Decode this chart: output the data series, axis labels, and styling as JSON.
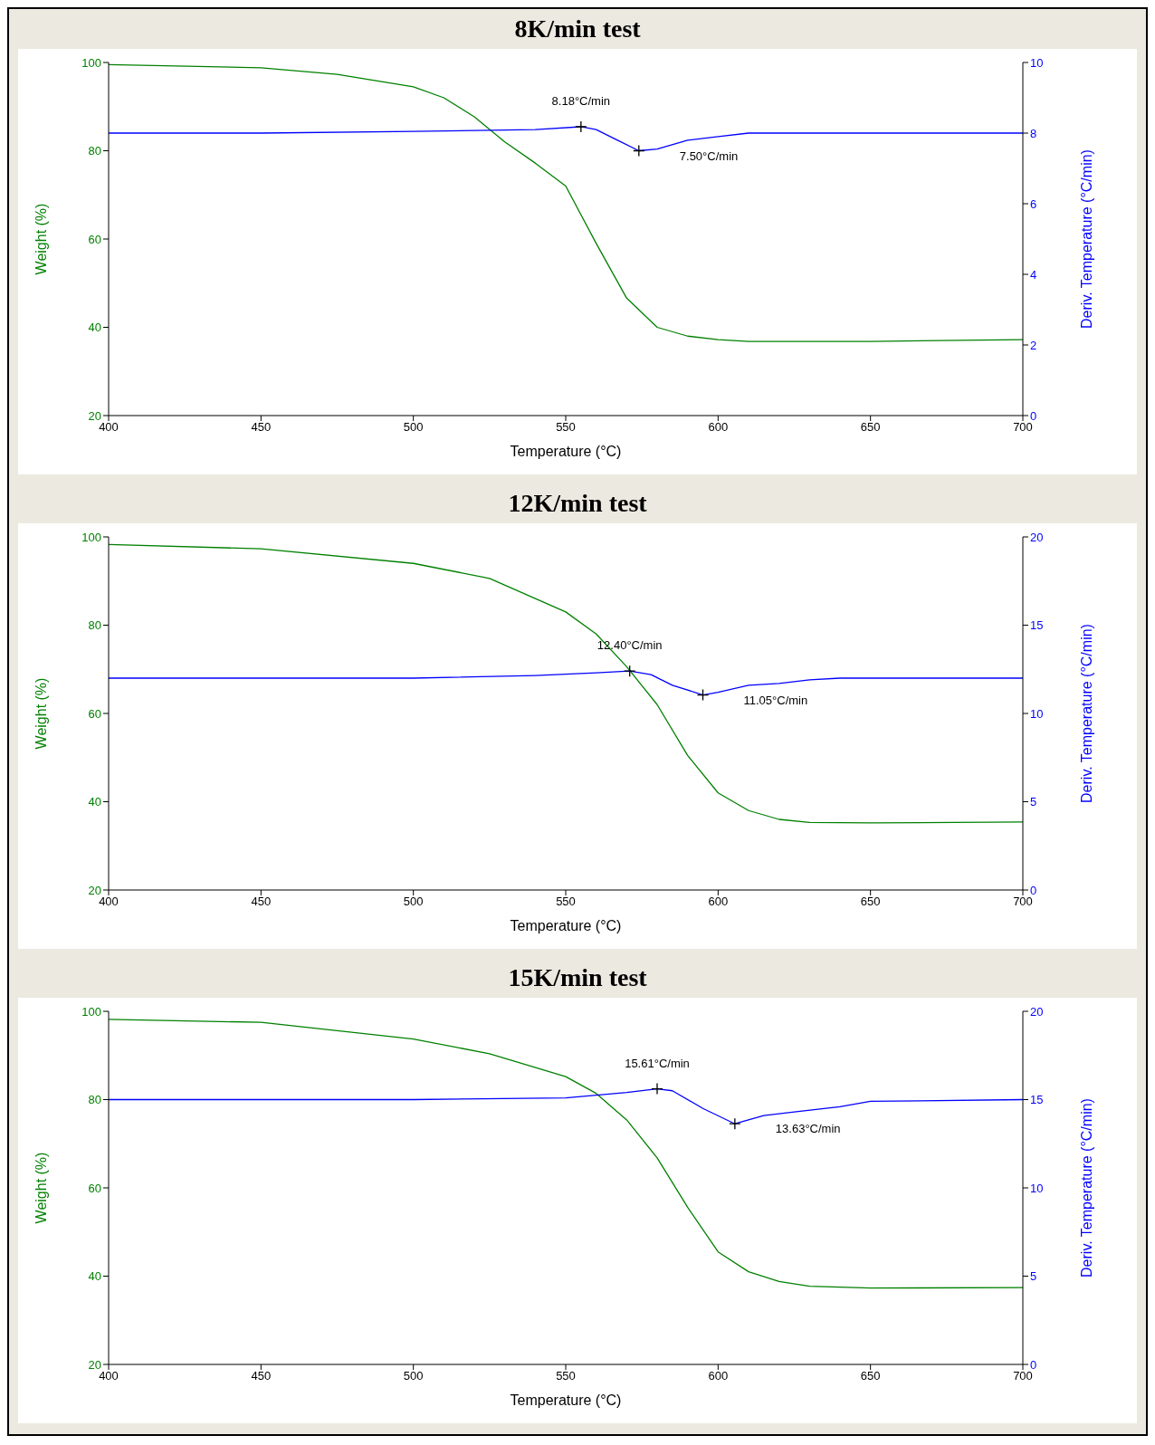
{
  "chart_data": [
    {
      "type": "line",
      "title": "8K/min test",
      "xlabel": "Temperature (°C)",
      "ylabel": "Weight (%)",
      "y2label": "Deriv. Temperature (°C/min)",
      "xlim": [
        400,
        700
      ],
      "xticks": [
        400,
        450,
        500,
        550,
        600,
        650,
        700
      ],
      "ylim": [
        20,
        100
      ],
      "yticks": [
        20,
        40,
        60,
        80,
        100
      ],
      "y2lim": [
        0,
        10
      ],
      "y2ticks": [
        0,
        2,
        4,
        6,
        8,
        10
      ],
      "series": [
        {
          "color": "#008000",
          "axis": "y",
          "x": [
            400,
            450,
            475,
            500,
            510,
            520,
            530,
            540,
            550,
            560,
            570,
            580,
            590,
            600,
            610,
            650,
            700
          ],
          "values": [
            99.5,
            98.8,
            97.3,
            94.5,
            92,
            87.7,
            82,
            77.2,
            72,
            59,
            46.6,
            40,
            38,
            37.2,
            36.8,
            36.8,
            37.2
          ]
        },
        {
          "color": "#0000ff",
          "axis": "y2",
          "x": [
            400,
            450,
            500,
            540,
            555,
            560,
            567,
            574,
            580,
            590,
            600,
            610,
            650,
            700
          ],
          "values": [
            8.0,
            8.0,
            8.05,
            8.1,
            8.18,
            8.1,
            7.8,
            7.5,
            7.55,
            7.8,
            7.9,
            8.0,
            8.0,
            8.0
          ]
        }
      ],
      "annotations": [
        "8.18°C/min",
        "7.50°C/min"
      ]
    },
    {
      "type": "line",
      "title": "12K/min test",
      "xlabel": "Temperature (°C)",
      "ylabel": "Weight (%)",
      "y2label": "Deriv. Temperature (°C/min)",
      "xlim": [
        400,
        700
      ],
      "xticks": [
        400,
        450,
        500,
        550,
        600,
        650,
        700
      ],
      "ylim": [
        20,
        100
      ],
      "yticks": [
        20,
        40,
        60,
        80,
        100
      ],
      "y2lim": [
        0,
        20
      ],
      "y2ticks": [
        0,
        5,
        10,
        15,
        20
      ],
      "series": [
        {
          "color": "#008000",
          "axis": "y",
          "x": [
            400,
            450,
            500,
            525,
            550,
            560,
            570,
            580,
            590,
            600,
            610,
            620,
            630,
            650,
            700
          ],
          "values": [
            98.3,
            97.3,
            94,
            90.6,
            83,
            78,
            70.6,
            62,
            50.5,
            42,
            38,
            36,
            35.3,
            35.2,
            35.4
          ]
        },
        {
          "color": "#0000ff",
          "axis": "y2",
          "x": [
            400,
            450,
            500,
            540,
            560,
            571,
            578,
            585,
            595,
            600,
            610,
            620,
            630,
            640,
            700
          ],
          "values": [
            12.0,
            12.0,
            12.0,
            12.15,
            12.3,
            12.4,
            12.2,
            11.6,
            11.05,
            11.2,
            11.6,
            11.7,
            11.9,
            12.0,
            12.0
          ]
        }
      ],
      "annotations": [
        "12.40°C/min",
        "11.05°C/min"
      ]
    },
    {
      "type": "line",
      "title": "15K/min test",
      "xlabel": "Temperature (°C)",
      "ylabel": "Weight (%)",
      "y2label": "Deriv. Temperature (°C/min)",
      "xlim": [
        400,
        700
      ],
      "xticks": [
        400,
        450,
        500,
        550,
        600,
        650,
        700
      ],
      "ylim": [
        20,
        100
      ],
      "yticks": [
        20,
        40,
        60,
        80,
        100
      ],
      "y2lim": [
        0,
        20
      ],
      "y2ticks": [
        0,
        5,
        10,
        15,
        20
      ],
      "series": [
        {
          "color": "#008000",
          "axis": "y",
          "x": [
            400,
            450,
            500,
            525,
            550,
            560,
            570,
            580,
            590,
            600,
            610,
            620,
            630,
            650,
            700
          ],
          "values": [
            98.2,
            97.5,
            93.7,
            90.4,
            85.2,
            81.4,
            75.4,
            66.8,
            55.6,
            45.5,
            41,
            38.8,
            37.7,
            37.3,
            37.4
          ]
        },
        {
          "color": "#0000ff",
          "axis": "y2",
          "x": [
            400,
            450,
            500,
            550,
            570,
            580,
            585,
            595,
            605.5,
            615,
            625,
            640,
            650,
            700
          ],
          "values": [
            15.0,
            15.0,
            15.0,
            15.1,
            15.4,
            15.61,
            15.5,
            14.5,
            13.63,
            14.1,
            14.3,
            14.6,
            14.9,
            15.0
          ]
        }
      ],
      "annotations": [
        "15.61°C/min",
        "13.63°C/min"
      ]
    }
  ]
}
